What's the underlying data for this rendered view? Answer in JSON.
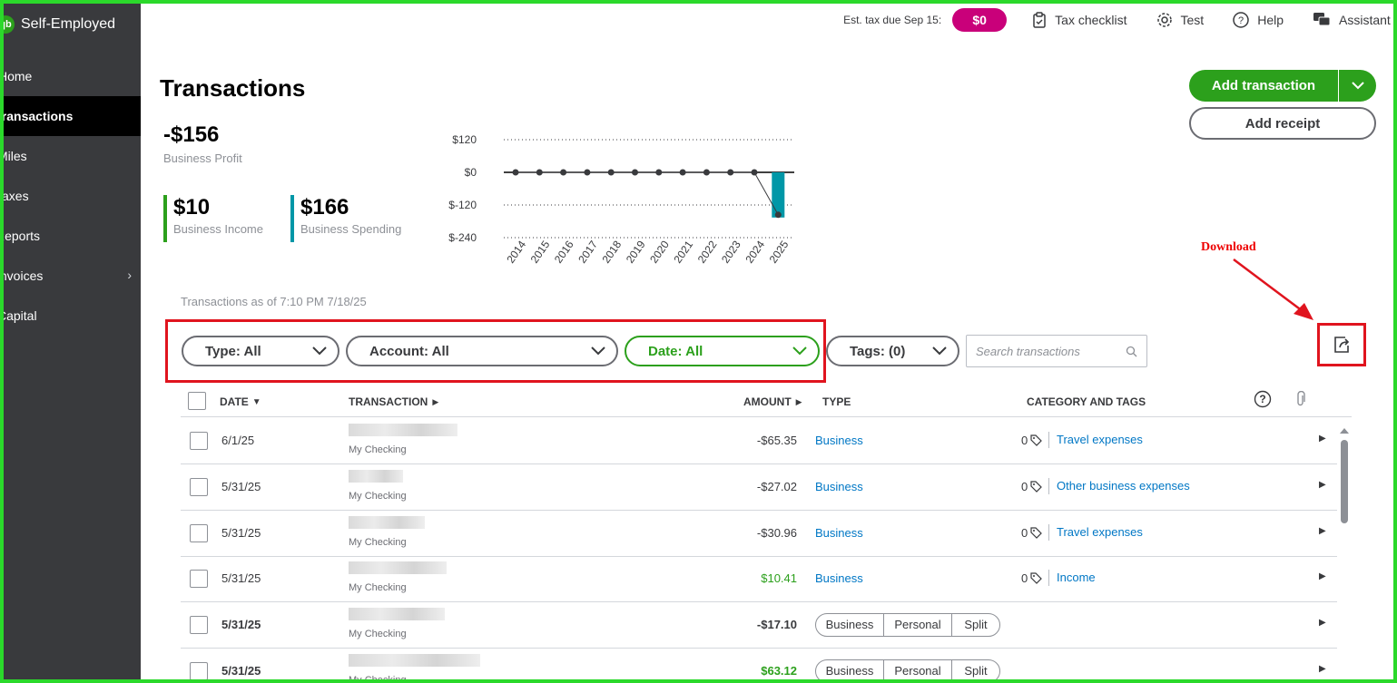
{
  "app": {
    "brand_logo": "qb",
    "brand_name": "Self-Employed"
  },
  "sidebar": {
    "items": [
      {
        "label": "Home"
      },
      {
        "label": "Transactions"
      },
      {
        "label": "Miles"
      },
      {
        "label": "Taxes"
      },
      {
        "label": "Reports"
      },
      {
        "label": "Invoices"
      },
      {
        "label": "Capital"
      }
    ],
    "active_index": 1
  },
  "topbar": {
    "est_tax_label": "Est. tax due Sep 15:",
    "est_tax_value": "$0",
    "tax_checklist": "Tax checklist",
    "settings_label": "Test",
    "help": "Help",
    "assistant": "Assistant"
  },
  "page": {
    "title": "Transactions"
  },
  "summary": {
    "profit_value": "-$156",
    "profit_label": "Business Profit",
    "income_value": "$10",
    "income_label": "Business Income",
    "spending_value": "$166",
    "spending_label": "Business Spending"
  },
  "chart_data": {
    "type": "line",
    "x": [
      "2014",
      "2015",
      "2016",
      "2017",
      "2018",
      "2019",
      "2020",
      "2021",
      "2022",
      "2023",
      "2024",
      "2025"
    ],
    "series": [
      {
        "values": [
          0,
          0,
          0,
          0,
          0,
          0,
          0,
          0,
          0,
          0,
          0,
          -156
        ]
      }
    ],
    "bars": {
      "values": [
        0,
        0,
        0,
        0,
        0,
        0,
        0,
        0,
        0,
        0,
        0,
        -166
      ]
    },
    "y_ticks": [
      "$120",
      "$0",
      "$-120",
      "$-240"
    ],
    "ylim": [
      -240,
      120
    ],
    "grid": true,
    "colors": {
      "line": "#393a3d",
      "bar": "#0097a7"
    }
  },
  "actions": {
    "add_transaction": "Add transaction",
    "add_receipt": "Add receipt"
  },
  "annotation": {
    "label": "Download"
  },
  "asof": "Transactions as of 7:10 PM 7/18/25",
  "filters": {
    "type": "Type: All",
    "account": "Account: All",
    "date": "Date: All",
    "tags": "Tags: (0)",
    "search_placeholder": "Search transactions"
  },
  "table": {
    "headers": {
      "date": "DATE",
      "transaction": "TRANSACTION",
      "amount": "AMOUNT",
      "type": "TYPE",
      "category": "CATEGORY AND TAGS"
    },
    "segment_labels": {
      "business": "Business",
      "personal": "Personal",
      "split": "Split"
    },
    "rows": [
      {
        "date": "6/1/25",
        "account": "My Checking",
        "amount": "-$65.35",
        "type": "Business",
        "tags": "0",
        "category": "Travel expenses"
      },
      {
        "date": "5/31/25",
        "account": "My Checking",
        "amount": "-$27.02",
        "type": "Business",
        "tags": "0",
        "category": "Other business expenses"
      },
      {
        "date": "5/31/25",
        "account": "My Checking",
        "amount": "-$30.96",
        "type": "Business",
        "tags": "0",
        "category": "Travel expenses"
      },
      {
        "date": "5/31/25",
        "account": "My Checking",
        "amount": "$10.41",
        "type": "Business",
        "tags": "0",
        "category": "Income"
      },
      {
        "date": "5/31/25",
        "account": "My Checking",
        "amount": "-$17.10"
      },
      {
        "date": "5/31/25",
        "account": "My Checking",
        "amount": "$63.12"
      }
    ]
  },
  "colors": {
    "accent": "#2ca01c",
    "tax_pill": "#c9007a",
    "link": "#0077c5",
    "annotation": "#e0141e"
  }
}
